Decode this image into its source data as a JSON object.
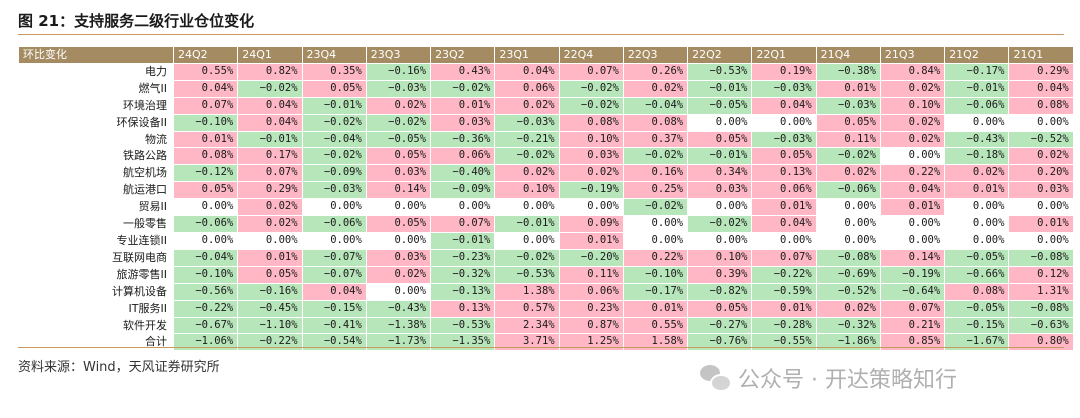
{
  "title": "图 21：支持服务二级行业仓位变化",
  "table": {
    "corner": "环比变化",
    "columns": [
      "24Q2",
      "24Q1",
      "23Q4",
      "23Q3",
      "23Q2",
      "23Q1",
      "22Q4",
      "22Q3",
      "22Q2",
      "22Q1",
      "21Q4",
      "21Q3",
      "21Q2",
      "21Q1"
    ],
    "rows": [
      {
        "label": "电力",
        "values": [
          "0.55%",
          "0.82%",
          "0.35%",
          "−0.16%",
          "0.43%",
          "0.04%",
          "0.07%",
          "0.26%",
          "−0.53%",
          "0.19%",
          "−0.38%",
          "0.84%",
          "−0.17%",
          "0.29%"
        ]
      },
      {
        "label": "燃气II",
        "values": [
          "0.04%",
          "−0.02%",
          "0.05%",
          "−0.03%",
          "−0.02%",
          "0.06%",
          "−0.02%",
          "0.02%",
          "−0.01%",
          "−0.03%",
          "0.01%",
          "0.02%",
          "−0.01%",
          "0.04%"
        ]
      },
      {
        "label": "环境治理",
        "values": [
          "0.07%",
          "0.04%",
          "−0.01%",
          "0.02%",
          "0.01%",
          "0.02%",
          "−0.02%",
          "−0.04%",
          "−0.05%",
          "0.04%",
          "−0.03%",
          "0.10%",
          "−0.06%",
          "0.08%"
        ]
      },
      {
        "label": "环保设备II",
        "values": [
          "−0.10%",
          "0.04%",
          "−0.02%",
          "−0.02%",
          "0.03%",
          "−0.03%",
          "0.08%",
          "0.08%",
          "0.00%",
          "0.00%",
          "0.05%",
          "0.02%",
          "0.00%",
          "0.00%"
        ]
      },
      {
        "label": "物流",
        "values": [
          "0.01%",
          "−0.01%",
          "−0.04%",
          "−0.05%",
          "−0.36%",
          "−0.21%",
          "0.10%",
          "0.37%",
          "0.05%",
          "−0.03%",
          "0.11%",
          "0.02%",
          "−0.43%",
          "−0.52%"
        ]
      },
      {
        "label": "铁路公路",
        "values": [
          "0.08%",
          "0.17%",
          "−0.02%",
          "0.05%",
          "0.06%",
          "−0.02%",
          "0.03%",
          "−0.02%",
          "−0.01%",
          "0.05%",
          "−0.02%",
          "0.00%",
          "−0.18%",
          "0.02%"
        ]
      },
      {
        "label": "航空机场",
        "values": [
          "−0.12%",
          "0.07%",
          "−0.09%",
          "0.03%",
          "−0.40%",
          "0.02%",
          "0.02%",
          "0.16%",
          "0.34%",
          "0.13%",
          "0.02%",
          "0.22%",
          "0.02%",
          "0.20%"
        ]
      },
      {
        "label": "航运港口",
        "values": [
          "0.05%",
          "0.29%",
          "−0.03%",
          "0.14%",
          "−0.09%",
          "0.10%",
          "−0.19%",
          "0.25%",
          "0.03%",
          "0.06%",
          "−0.06%",
          "0.04%",
          "0.01%",
          "0.03%"
        ]
      },
      {
        "label": "贸易II",
        "values": [
          "0.00%",
          "0.02%",
          "0.00%",
          "0.00%",
          "0.00%",
          "0.00%",
          "0.00%",
          "−0.02%",
          "0.00%",
          "0.01%",
          "0.00%",
          "0.01%",
          "0.00%",
          "0.00%"
        ]
      },
      {
        "label": "一般零售",
        "values": [
          "−0.06%",
          "0.02%",
          "−0.06%",
          "0.05%",
          "0.07%",
          "−0.01%",
          "0.09%",
          "0.00%",
          "−0.02%",
          "0.04%",
          "0.00%",
          "0.00%",
          "0.00%",
          "0.01%"
        ]
      },
      {
        "label": "专业连锁II",
        "values": [
          "0.00%",
          "0.00%",
          "0.00%",
          "0.00%",
          "−0.01%",
          "0.00%",
          "0.01%",
          "0.00%",
          "0.00%",
          "0.00%",
          "0.00%",
          "0.00%",
          "0.00%",
          "0.00%"
        ]
      },
      {
        "label": "互联网电商",
        "values": [
          "−0.04%",
          "0.01%",
          "−0.07%",
          "0.03%",
          "−0.23%",
          "−0.02%",
          "−0.20%",
          "0.22%",
          "0.10%",
          "0.07%",
          "−0.08%",
          "0.14%",
          "−0.05%",
          "−0.08%"
        ]
      },
      {
        "label": "旅游零售II",
        "values": [
          "−0.10%",
          "0.05%",
          "−0.07%",
          "0.02%",
          "−0.32%",
          "−0.53%",
          "0.11%",
          "−0.10%",
          "0.39%",
          "−0.22%",
          "−0.69%",
          "−0.19%",
          "−0.66%",
          "0.12%"
        ]
      },
      {
        "label": "计算机设备",
        "values": [
          "−0.56%",
          "−0.16%",
          "0.04%",
          "0.00%",
          "−0.13%",
          "1.38%",
          "0.06%",
          "−0.17%",
          "−0.82%",
          "−0.59%",
          "−0.52%",
          "−0.64%",
          "0.08%",
          "1.31%"
        ]
      },
      {
        "label": "IT服务II",
        "values": [
          "−0.22%",
          "−0.45%",
          "−0.15%",
          "−0.43%",
          "0.13%",
          "0.57%",
          "0.23%",
          "0.01%",
          "0.05%",
          "0.01%",
          "0.02%",
          "0.07%",
          "−0.05%",
          "−0.08%"
        ]
      },
      {
        "label": "软件开发",
        "values": [
          "−0.67%",
          "−1.10%",
          "−0.41%",
          "−1.38%",
          "−0.53%",
          "2.34%",
          "0.87%",
          "0.55%",
          "−0.27%",
          "−0.28%",
          "−0.32%",
          "0.21%",
          "−0.15%",
          "−0.63%"
        ]
      },
      {
        "label": "合计",
        "values": [
          "−1.06%",
          "−0.22%",
          "−0.54%",
          "−1.73%",
          "−1.35%",
          "3.71%",
          "1.25%",
          "1.58%",
          "−0.76%",
          "−0.55%",
          "−1.86%",
          "0.85%",
          "−1.67%",
          "0.80%"
        ]
      }
    ],
    "colors": {
      "header": "#a48b62",
      "positive": "#ffb7c5",
      "negative": "#b8e6bb",
      "zero": "#ffffff"
    }
  },
  "source": "资料来源：Wind，天风证券研究所",
  "watermark": "公众号 · 开达策略知行"
}
